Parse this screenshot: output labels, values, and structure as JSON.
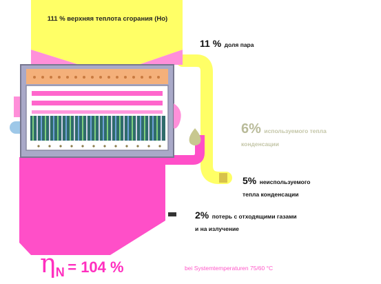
{
  "colors": {
    "fuel_yellow": "#ffff66",
    "flue_magenta": "#ff4fc8",
    "casing_gray": "#a9a9c8",
    "burner_orange": "#f4b07a",
    "efficiency_pink": "#ff2fbf"
  },
  "fuel_input": {
    "label": "111 % верхняя теплота сгорания (Ho)"
  },
  "flows": {
    "steam": {
      "percent": "11 %",
      "text": "доля пара"
    },
    "condensation_used": {
      "percent": "6%",
      "text_line1": "используемого тепла",
      "text_line2": "конденсации"
    },
    "condensation_unused": {
      "percent": "5%",
      "text_line1": "неиспользуемого",
      "text_line2": "тепла конденсации"
    },
    "flue_loss": {
      "percent": "2%",
      "text_line1": "потерь с отходящими газами",
      "text_line2": "и на излучение"
    }
  },
  "efficiency": {
    "symbol": "η",
    "subscript": "N",
    "value": "= 104 %",
    "note": "bei Systemtemperaturen 75/60 °C"
  },
  "icons": {
    "droplet": "condensate-droplet-icon"
  }
}
